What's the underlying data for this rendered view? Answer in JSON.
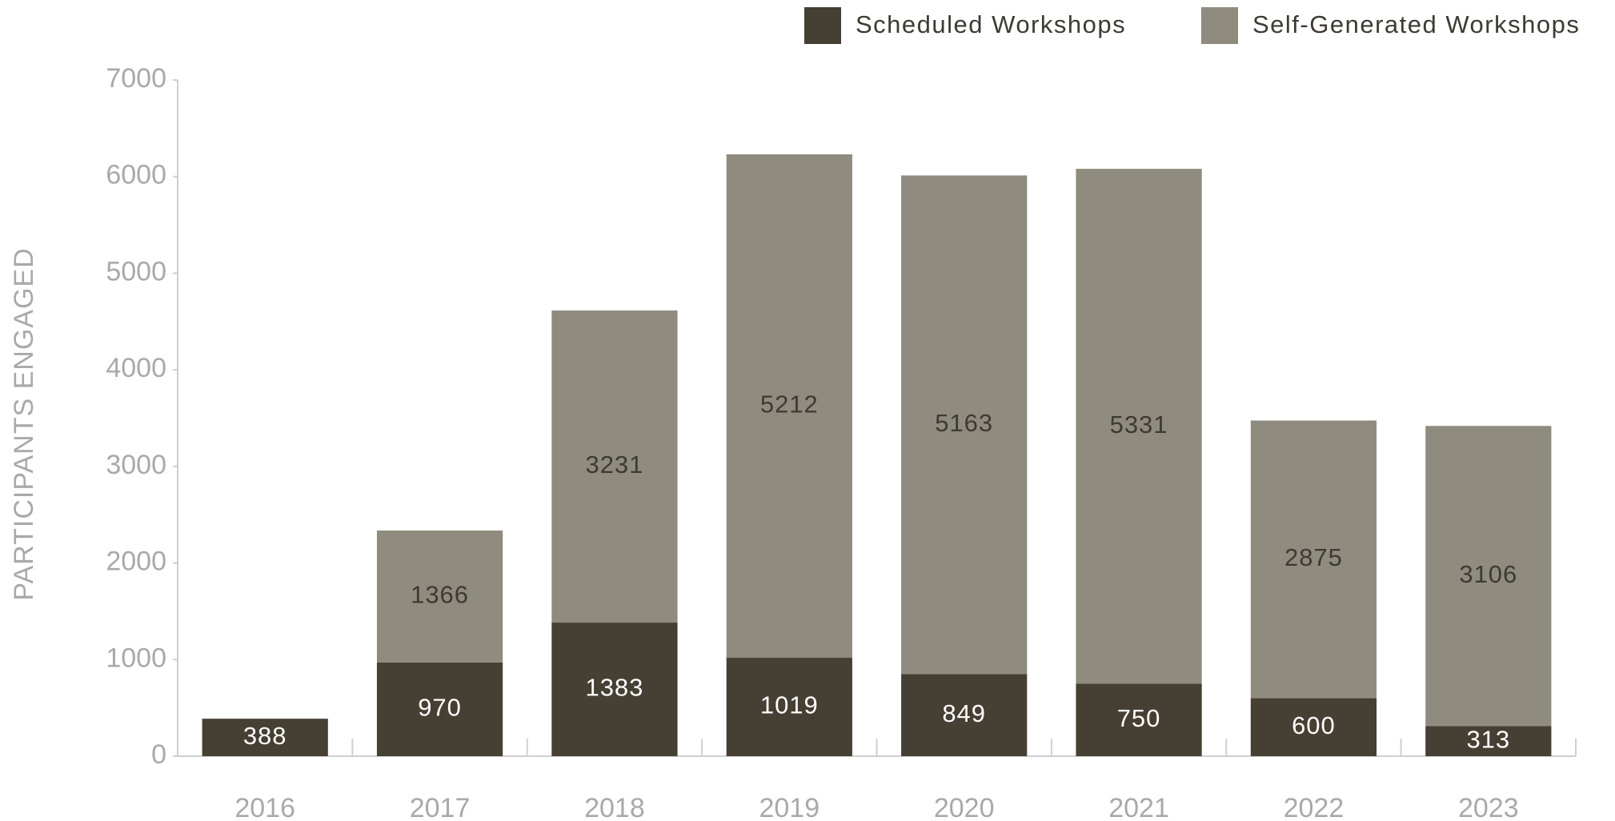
{
  "chart_data": {
    "type": "stacked_bar",
    "y_label": "PARTICIPANTS ENGAGED",
    "categories": [
      "2016",
      "2017",
      "2018",
      "2019",
      "2020",
      "2021",
      "2022",
      "2023"
    ],
    "series": [
      {
        "name": "Scheduled Workshops",
        "color": "#463f33",
        "values": [
          388,
          970,
          1383,
          1019,
          849,
          750,
          600,
          313
        ]
      },
      {
        "name": "Self-Generated Workshops",
        "color": "#8f8b7e",
        "values": [
          null,
          1366,
          3231,
          5212,
          5163,
          5331,
          2875,
          3106
        ]
      }
    ],
    "ylim": [
      0,
      7000
    ],
    "yticks": [
      0,
      1000,
      2000,
      3000,
      4000,
      5000,
      6000,
      7000
    ],
    "grid": false,
    "legend": "top-right"
  }
}
